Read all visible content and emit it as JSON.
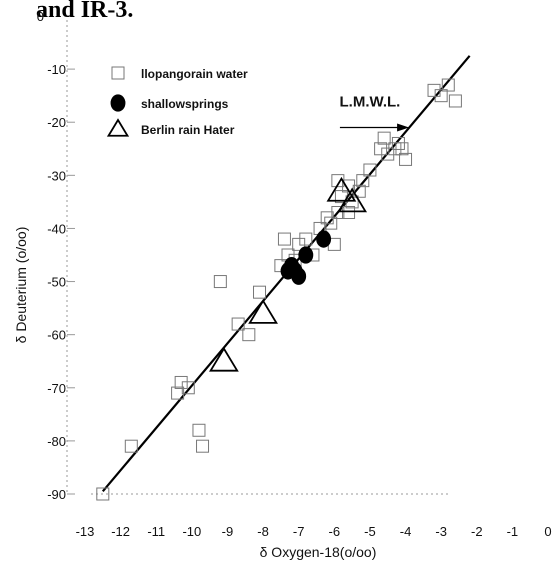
{
  "header": {
    "fragment": "and IR-3."
  },
  "chart_data": {
    "type": "scatter",
    "xlabel": "δ Oxygen-18(o/oo)",
    "ylabel": "δ Deuterium (o/oo)",
    "xlim": [
      -13,
      0
    ],
    "ylim": [
      -90,
      0
    ],
    "x_ticks": [
      "-13",
      "-12",
      "-11",
      "-10",
      "-9",
      "-8",
      "-7",
      "-6",
      "-5",
      "-4",
      "-3",
      "-2",
      "-1",
      "0"
    ],
    "y_ticks": [
      "0",
      "-10",
      "-20",
      "-30",
      "-40",
      "-50",
      "-60",
      "-70",
      "-80",
      "-90"
    ],
    "legend": {
      "placement": "top-left"
    },
    "series": [
      {
        "name": "llopangorain water",
        "marker": "open-square",
        "points": [
          [
            -2.6,
            -16
          ],
          [
            -2.8,
            -13
          ],
          [
            -3.0,
            -15
          ],
          [
            -3.2,
            -14
          ],
          [
            -4.0,
            -27
          ],
          [
            -4.1,
            -25
          ],
          [
            -4.2,
            -24
          ],
          [
            -4.3,
            -25
          ],
          [
            -4.5,
            -26
          ],
          [
            -4.6,
            -23
          ],
          [
            -4.7,
            -25
          ],
          [
            -5.0,
            -29
          ],
          [
            -5.2,
            -31
          ],
          [
            -5.3,
            -33
          ],
          [
            -5.5,
            -35
          ],
          [
            -5.6,
            -32
          ],
          [
            -5.8,
            -34
          ],
          [
            -5.9,
            -31
          ],
          [
            -5.6,
            -37
          ],
          [
            -5.9,
            -37
          ],
          [
            -6.1,
            -39
          ],
          [
            -6.0,
            -43
          ],
          [
            -6.2,
            -38
          ],
          [
            -6.4,
            -40
          ],
          [
            -6.6,
            -45
          ],
          [
            -6.8,
            -42
          ],
          [
            -7.0,
            -43
          ],
          [
            -7.3,
            -45
          ],
          [
            -7.4,
            -42
          ],
          [
            -7.5,
            -47
          ],
          [
            -7.1,
            -46
          ],
          [
            -7.2,
            -48
          ],
          [
            -8.1,
            -52
          ],
          [
            -8.7,
            -58
          ],
          [
            -8.4,
            -60
          ],
          [
            -9.2,
            -50
          ],
          [
            -10.1,
            -70
          ],
          [
            -10.3,
            -69
          ],
          [
            -10.4,
            -71
          ],
          [
            -9.8,
            -78
          ],
          [
            -9.7,
            -81
          ],
          [
            -11.7,
            -81
          ],
          [
            -12.5,
            -90
          ]
        ]
      },
      {
        "name": "shallowsprings",
        "marker": "filled-circle",
        "points": [
          [
            -6.3,
            -42
          ],
          [
            -6.8,
            -45
          ],
          [
            -7.0,
            -49
          ],
          [
            -7.1,
            -48
          ],
          [
            -7.2,
            -47
          ],
          [
            -7.3,
            -48
          ]
        ]
      },
      {
        "name": "Berlin rain Hater",
        "marker": "open-triangle",
        "points": [
          [
            -5.8,
            -33
          ],
          [
            -5.5,
            -35
          ],
          [
            -8.0,
            -56
          ],
          [
            -9.1,
            -65
          ]
        ]
      }
    ],
    "lines": [
      {
        "label": "L.M.W.L.",
        "from": [
          -12.5,
          -89.5
        ],
        "to": [
          -2.2,
          -7.5
        ]
      }
    ],
    "annotations": [
      {
        "text": "L.M.W.L.",
        "at": [
          -5.0,
          -17
        ],
        "arrow_to": [
          -3.9,
          -21
        ]
      }
    ],
    "colors": {
      "ink": "#000000",
      "faint": "#999999"
    }
  }
}
